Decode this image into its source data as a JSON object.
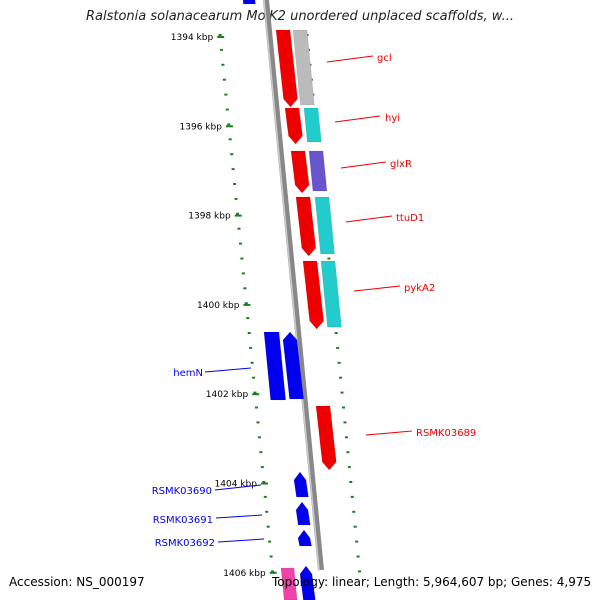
{
  "title": "Ralstonia solanacearum MolK2 unordered unplaced scaffolds, w...",
  "accession": "Accession: NS_000197",
  "topology": "Topology: linear; Length: 5,964,607 bp; Genes: 4,975",
  "colors": {
    "forward_gene": "#ee0000",
    "reverse_gene": "#0000ee",
    "tick": "#1e7d1e",
    "backbone": "#888888",
    "cog_grey": "#bbbbbb",
    "cog_cyan": "#22cccc",
    "cog_purple": "#6655cc",
    "cog_pink": "#ee44aa"
  },
  "scale": {
    "unit": "kbp",
    "labels": [
      "1394 kbp",
      "1396 kbp",
      "1398 kbp",
      "1400 kbp",
      "1402 kbp",
      "1404 kbp",
      "1406 kbp"
    ]
  },
  "genes": [
    {
      "label": "gcl",
      "strand": "+",
      "cog_color": "#bbbbbb"
    },
    {
      "label": "hyi",
      "strand": "+",
      "cog_color": "#22cccc"
    },
    {
      "label": "glxR",
      "strand": "+",
      "cog_color": "#6655cc"
    },
    {
      "label": "ttuD1",
      "strand": "+",
      "cog_color": "#22cccc"
    },
    {
      "label": "pykA2",
      "strand": "+",
      "cog_color": "#22cccc"
    },
    {
      "label": "hemN",
      "strand": "-",
      "cog_color": "#0000ee"
    },
    {
      "label": "RSMK03689",
      "strand": "+",
      "cog_color": null
    },
    {
      "label": "RSMK03690",
      "strand": "-",
      "cog_color": null
    },
    {
      "label": "RSMK03691",
      "strand": "-",
      "cog_color": null
    },
    {
      "label": "RSMK03692",
      "strand": "-",
      "cog_color": null
    }
  ]
}
